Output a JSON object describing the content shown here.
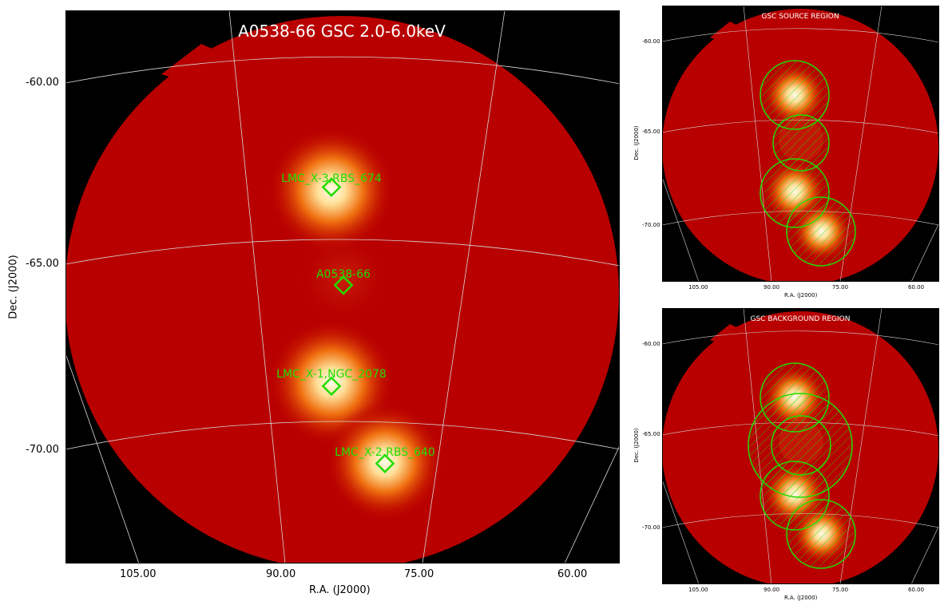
{
  "main_panel": {
    "title": "A0538-66 GSC 2.0-6.0keV",
    "x_axis_label": "R.A. (J2000)",
    "y_axis_label": "Dec. (J2000)",
    "x_ticks": [
      "105.00",
      "90.00",
      "75.00",
      "60.00"
    ],
    "y_ticks": [
      "-60.00",
      "-65.00",
      "-70.00"
    ],
    "sources": [
      {
        "name": "LMC_X-3,RBS_674"
      },
      {
        "name": "A0538-66"
      },
      {
        "name": "LMC_X-1,NGC_2078"
      },
      {
        "name": "LMC_X-2,RBS_640"
      }
    ]
  },
  "source_panel": {
    "title": "GSC SOURCE REGION",
    "x_axis_label": "R.A. (J2000)",
    "y_axis_label": "Dec. (J2000)",
    "x_ticks": [
      "105.00",
      "90.00",
      "75.00",
      "60.00"
    ],
    "y_ticks": [
      "-60.00",
      "-65.00",
      "-70.00"
    ]
  },
  "background_panel": {
    "title": "GSC BACKGROUND REGION",
    "x_axis_label": "R.A. (J2000)",
    "y_axis_label": "Dec. (J2000)",
    "x_ticks": [
      "105.00",
      "90.00",
      "75.00",
      "60.00"
    ],
    "y_ticks": [
      "-60.00",
      "-65.00",
      "-70.00"
    ]
  },
  "colors": {
    "sky_background": "#000000",
    "field_red": "#b80000",
    "source_glow": "#fff8e0",
    "region_green": "#22dd00",
    "grid_line": "#d8d8d8"
  }
}
